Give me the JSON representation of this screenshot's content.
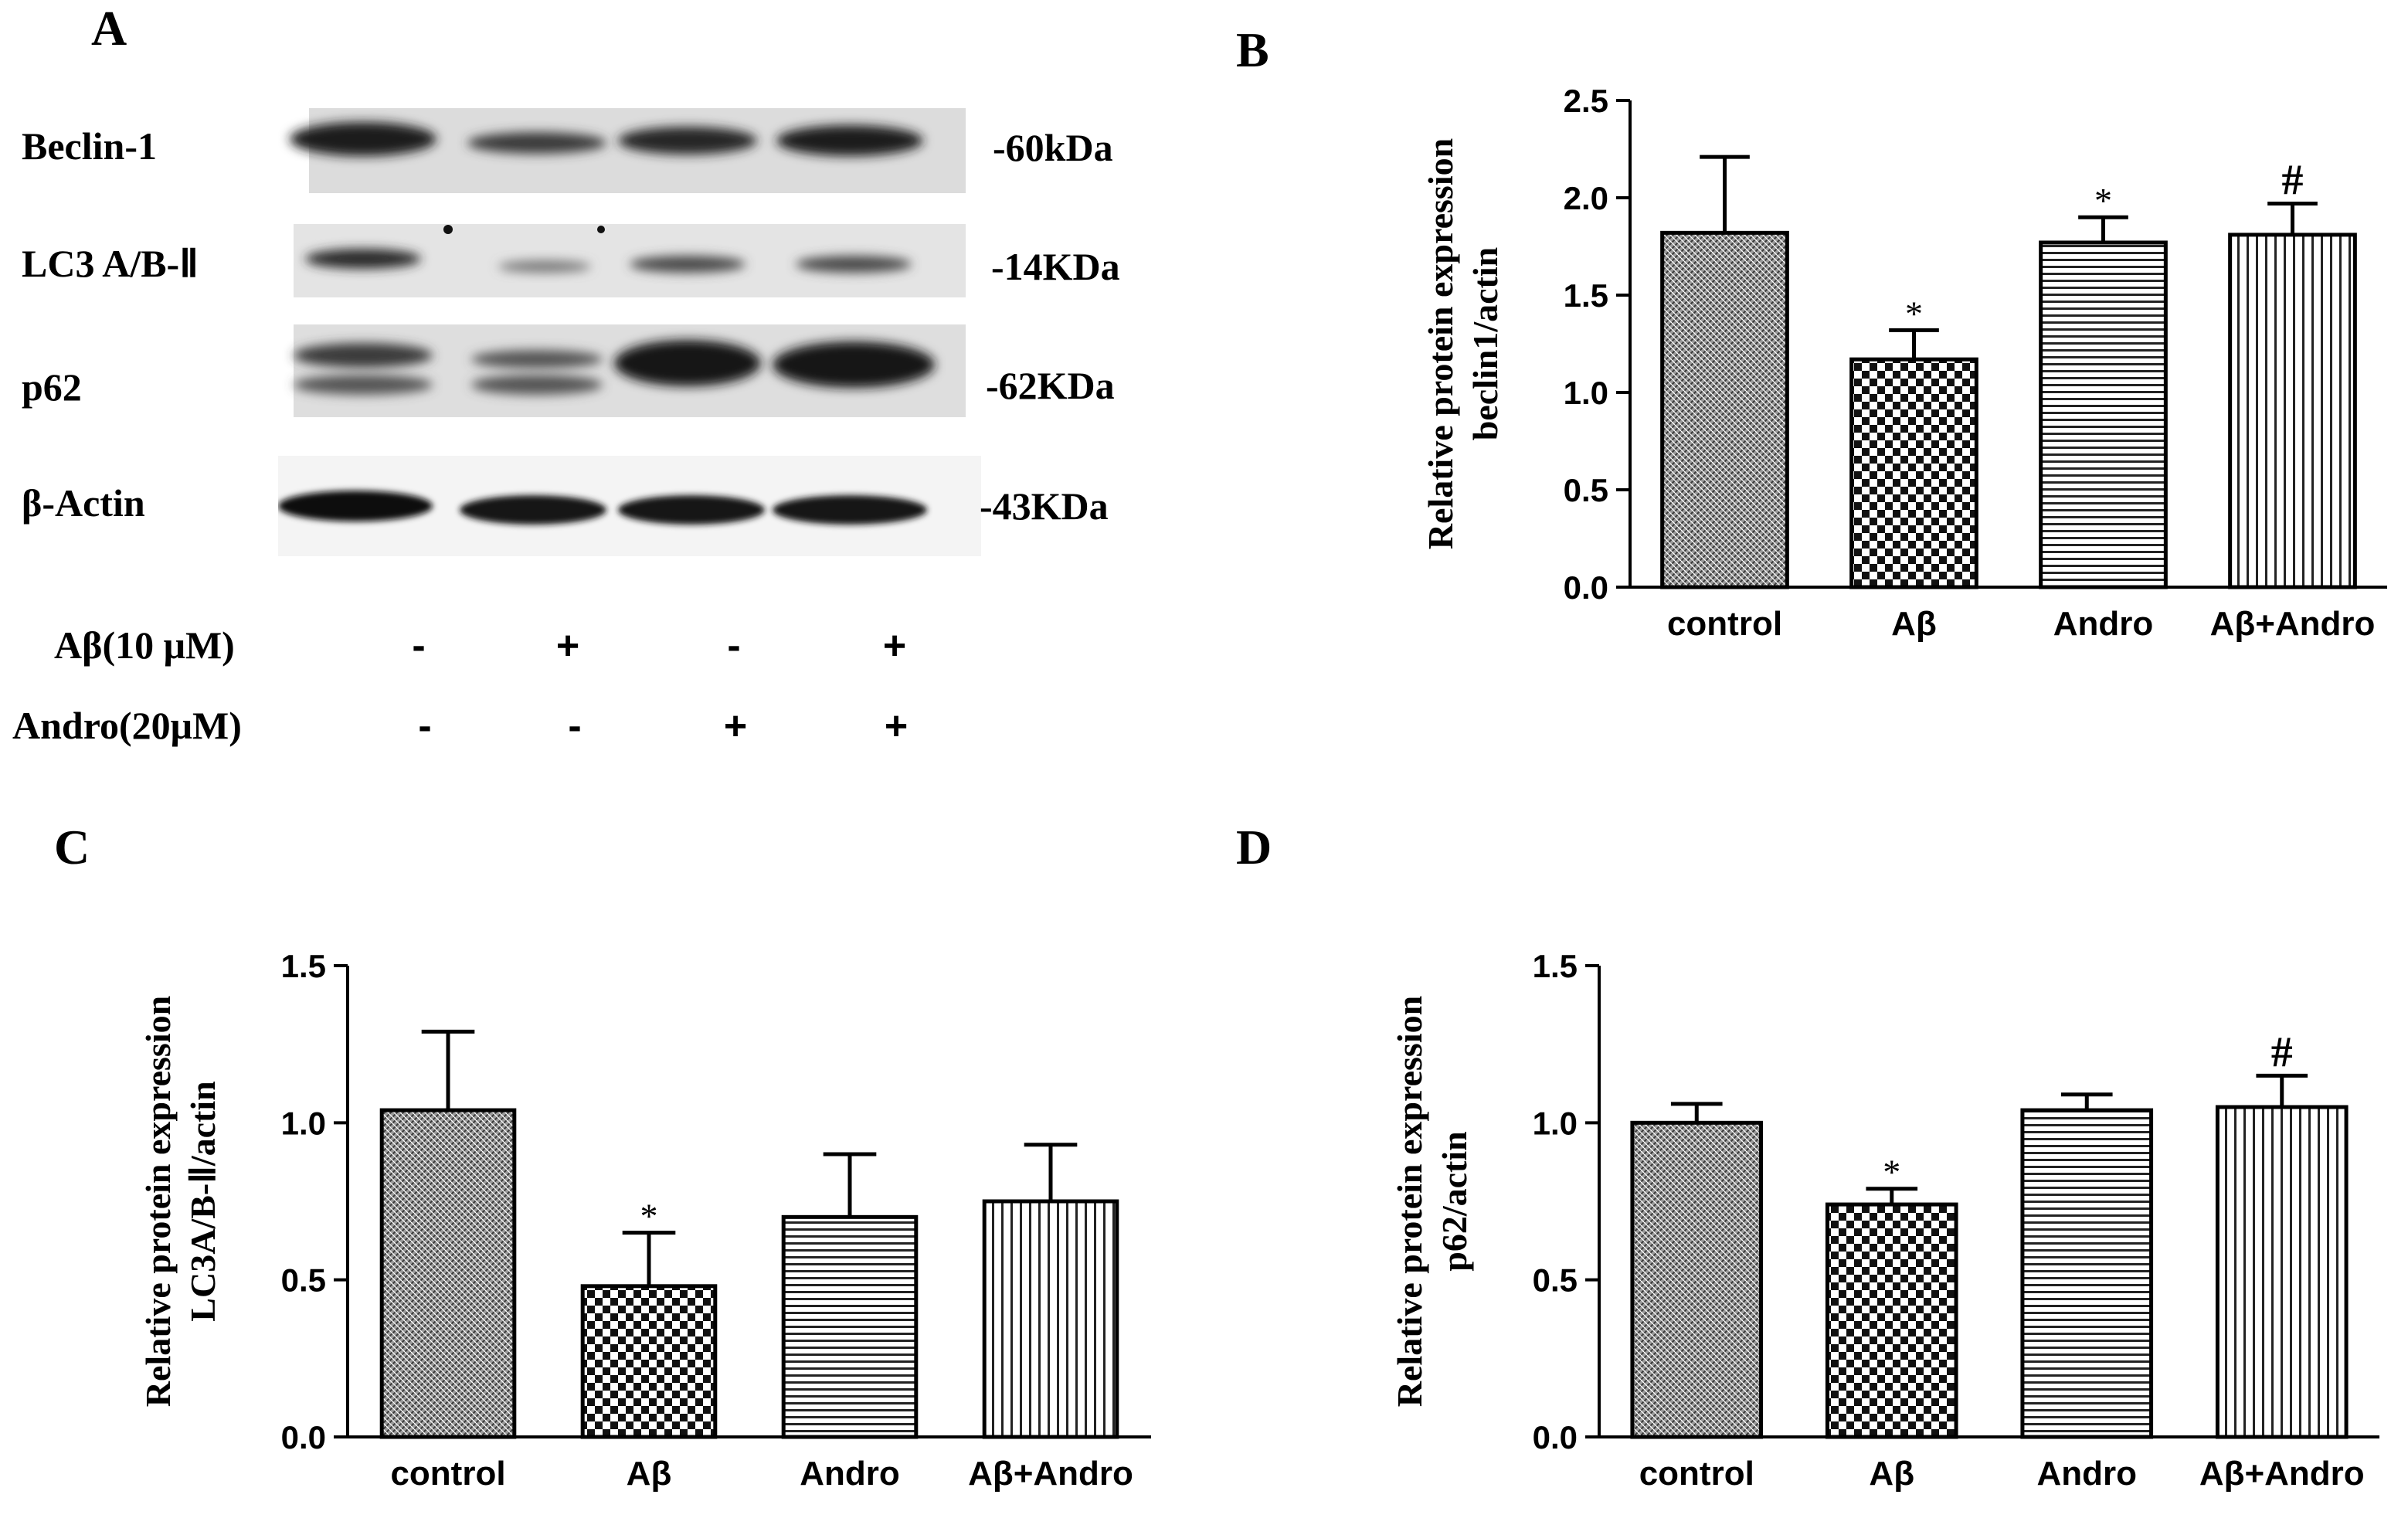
{
  "panel_a": {
    "letter": "A",
    "bands": [
      {
        "name": "Beclin-1",
        "kda": "-60kDa"
      },
      {
        "name": "LC3 A/B-Ⅱ",
        "kda": "-14KDa"
      },
      {
        "name": "p62",
        "kda": "-62KDa"
      },
      {
        "name": "β-Actin",
        "kda": "-43KDa"
      }
    ],
    "treatments": [
      {
        "label": "Aβ(10 μM)",
        "signs": [
          "-",
          "+",
          "-",
          "+"
        ]
      },
      {
        "label": "Andro(20μM)",
        "signs": [
          "-",
          "-",
          "+",
          "+"
        ]
      }
    ]
  },
  "chart_data": [
    {
      "panel": "B",
      "type": "bar",
      "categories": [
        "control",
        "Aβ",
        "Andro",
        "Aβ+Andro"
      ],
      "values": [
        1.82,
        1.17,
        1.77,
        1.81
      ],
      "errors": [
        0.39,
        0.15,
        0.13,
        0.16
      ],
      "annotations": [
        "",
        "*",
        "*",
        "#"
      ],
      "ylabel": [
        "Relative protein expression",
        "beclin1/actin"
      ],
      "ylim": [
        0,
        2.5
      ],
      "yticks": [
        "0.0",
        "0.5",
        "1.0",
        "1.5",
        "2.0",
        "2.5"
      ],
      "patterns": [
        "crosshatch",
        "checker",
        "horizontal",
        "vertical"
      ]
    },
    {
      "panel": "C",
      "type": "bar",
      "categories": [
        "control",
        "Aβ",
        "Andro",
        "Aβ+Andro"
      ],
      "values": [
        1.04,
        0.48,
        0.7,
        0.75
      ],
      "errors": [
        0.25,
        0.17,
        0.2,
        0.18
      ],
      "annotations": [
        "",
        "*",
        "",
        ""
      ],
      "ylabel": [
        "Relative protein expression",
        "LC3A/B-Ⅱ/actin"
      ],
      "ylim": [
        0,
        1.5
      ],
      "yticks": [
        "0.0",
        "0.5",
        "1.0",
        "1.5"
      ],
      "patterns": [
        "crosshatch",
        "checker",
        "horizontal",
        "vertical"
      ]
    },
    {
      "panel": "D",
      "type": "bar",
      "categories": [
        "control",
        "Aβ",
        "Andro",
        "Aβ+Andro"
      ],
      "values": [
        1.0,
        0.74,
        1.04,
        1.05
      ],
      "errors": [
        0.06,
        0.05,
        0.05,
        0.1
      ],
      "annotations": [
        "",
        "*",
        "",
        "#"
      ],
      "ylabel": [
        "Relative protein expression",
        "p62/actin"
      ],
      "ylim": [
        0,
        1.5
      ],
      "yticks": [
        "0.0",
        "0.5",
        "1.0",
        "1.5"
      ],
      "patterns": [
        "crosshatch",
        "checker",
        "horizontal",
        "vertical"
      ]
    }
  ]
}
